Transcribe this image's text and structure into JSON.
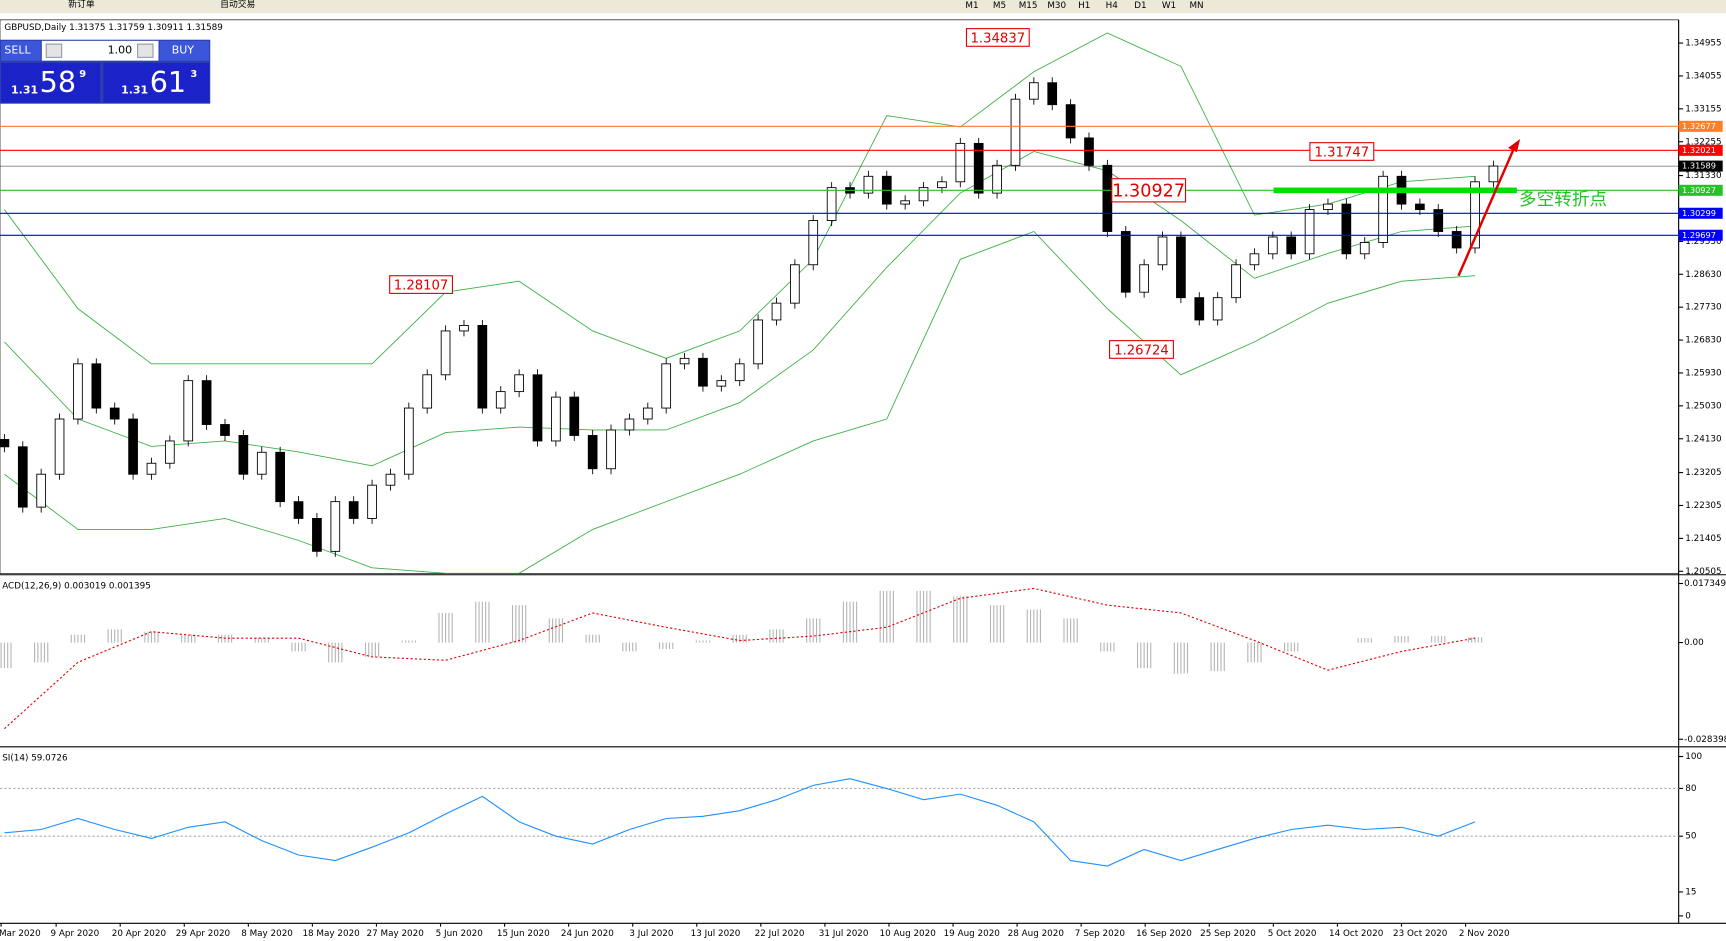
{
  "toolbar": {
    "new_order": "新订单",
    "auto_trading": "自动交易",
    "timeframes": [
      "M1",
      "M5",
      "M15",
      "M30",
      "H1",
      "H4",
      "D1",
      "W1",
      "MN"
    ]
  },
  "symbol_header": "GBPUSD,Daily 1.31375 1.31759 1.30911 1.31589",
  "trade_panel": {
    "sell": "SELL",
    "lots": "1.00",
    "buy": "BUY",
    "bid": {
      "prefix": "1.31",
      "pips": "58",
      "fraction": "9"
    },
    "ask": {
      "prefix": "1.31",
      "pips": "61",
      "fraction": "3"
    }
  },
  "main_pane": {
    "ylim": [
      1.2044,
      1.3559
    ],
    "yticks": [
      {
        "value": 1.34955,
        "label": "1.34955"
      },
      {
        "value": 1.34055,
        "label": "1.34055"
      },
      {
        "value": 1.33155,
        "label": "1.33155"
      },
      {
        "value": 1.32255,
        "label": "1.32255"
      },
      {
        "value": 1.3133,
        "label": "1.31330"
      },
      {
        "value": 1.2953,
        "label": "1.29530"
      },
      {
        "value": 1.2863,
        "label": "1.28630"
      },
      {
        "value": 1.2773,
        "label": "1.27730"
      },
      {
        "value": 1.2683,
        "label": "1.26830"
      },
      {
        "value": 1.2593,
        "label": "1.25930"
      },
      {
        "value": 1.2503,
        "label": "1.25030"
      },
      {
        "value": 1.2413,
        "label": "1.24130"
      },
      {
        "value": 1.23205,
        "label": "1.23205"
      },
      {
        "value": 1.22305,
        "label": "1.22305"
      },
      {
        "value": 1.21405,
        "label": "1.21405"
      },
      {
        "value": 1.20505,
        "label": "1.20505"
      }
    ],
    "levels": [
      {
        "value": 1.32677,
        "label": "1.32677",
        "color": "#ff7f27"
      },
      {
        "value": 1.32021,
        "label": "1.32021",
        "color": "#ff0000"
      },
      {
        "value": 1.31589,
        "label": "1.31589",
        "color": "#000000"
      },
      {
        "value": 1.30927,
        "label": "1.30927",
        "color": "#22c322"
      },
      {
        "value": 1.30299,
        "label": "1.30299",
        "color": "#0000ff"
      },
      {
        "value": 1.29697,
        "label": "1.29697",
        "color": "#0000ff"
      }
    ],
    "closes": [
      1.2391,
      1.2226,
      1.2316,
      1.2467,
      1.2618,
      1.2497,
      1.2467,
      1.2316,
      1.2346,
      1.2407,
      1.2572,
      1.2452,
      1.2422,
      1.2316,
      1.2376,
      1.2241,
      1.2195,
      1.2105,
      1.2241,
      1.2195,
      1.2286,
      1.2316,
      1.2497,
      1.2588,
      1.2708,
      1.2723,
      1.2497,
      1.2542,
      1.2588,
      1.2407,
      1.2527,
      1.2422,
      1.2331,
      1.2437,
      1.2467,
      1.2497,
      1.2618,
      1.2633,
      1.2557,
      1.2572,
      1.2618,
      1.2738,
      1.2784,
      1.2889,
      1.301,
      1.31,
      1.3085,
      1.3131,
      1.3055,
      1.3064,
      1.31,
      1.3116,
      1.3221,
      1.3085,
      1.3161,
      1.3342,
      1.3387,
      1.3327,
      1.3236,
      1.3161,
      1.298,
      1.2814,
      1.2889,
      1.2965,
      1.2799,
      1.2738,
      1.2799,
      1.2889,
      1.2919,
      1.2965,
      1.2919,
      1.304,
      1.3055,
      1.2919,
      1.295,
      1.3131,
      1.3055,
      1.304,
      1.298,
      1.2935,
      1.3116,
      1.3159
    ],
    "upper_band": [
      1.304,
      1.2769,
      1.2618,
      1.2618,
      1.2618,
      1.2618,
      1.2814,
      1.2844,
      1.2708,
      1.2633,
      1.2708,
      1.2904,
      1.3297,
      1.3266,
      1.3417,
      1.3523,
      1.3432,
      1.3025,
      1.3055,
      1.3116,
      1.3131
    ],
    "middle_band": [
      1.2678,
      1.2467,
      1.2392,
      1.2407,
      1.2377,
      1.2339,
      1.243,
      1.2445,
      1.2437,
      1.2437,
      1.2512,
      1.2656,
      1.2882,
      1.3085,
      1.3199,
      1.3146,
      1.301,
      1.2852,
      1.292,
      1.298,
      1.2995
    ],
    "lower_band": [
      1.2316,
      1.2165,
      1.2165,
      1.2195,
      1.2135,
      1.206,
      1.2045,
      1.2045,
      1.2165,
      1.2241,
      1.2316,
      1.2407,
      1.2467,
      1.2904,
      1.298,
      1.2769,
      1.2588,
      1.2678,
      1.2784,
      1.2844,
      1.2859
    ],
    "annotations": [
      {
        "value": 1.34837,
        "label": "1.34837"
      },
      {
        "value": 1.28107,
        "label": "1.28107"
      },
      {
        "value": 1.30927,
        "label": "1.30927"
      },
      {
        "value": 1.31747,
        "label": "1.31747"
      },
      {
        "value": 1.26724,
        "label": "1.26724"
      }
    ],
    "note": "多空转折点"
  },
  "macd_pane": {
    "label": "ACD(12,26,9) 0.003019 0.001395",
    "ylim": [
      -0.0303,
      0.0196
    ],
    "yticks": [
      0.017349,
      {
        "value": 0,
        "label": "0.00"
      },
      -0.028398
    ],
    "histogram": [
      -0.0075,
      -0.0058,
      0.0023,
      0.0039,
      0.0032,
      0.0023,
      0.0023,
      0.0013,
      -0.0026,
      -0.0058,
      -0.0042,
      0.0006,
      0.0087,
      0.012,
      0.011,
      0.0071,
      0.0023,
      -0.0026,
      -0.0019,
      0.0006,
      0.0023,
      0.0039,
      0.0071,
      0.012,
      0.0152,
      0.0152,
      0.0136,
      0.011,
      0.0097,
      0.0071,
      -0.0026,
      -0.0075,
      -0.0091,
      -0.0084,
      -0.0058,
      -0.0026,
      0,
      0.0013,
      0.0019,
      0.0019,
      0.0016
    ],
    "signal": [
      -0.0253,
      -0.0058,
      0.0032,
      0.0013,
      0.0013,
      -0.0042,
      -0.0052,
      0.0006,
      0.0087,
      0.0045,
      0.0006,
      0.0019,
      0.0045,
      0.013,
      0.0159,
      0.011,
      0.0087,
      0.0006,
      -0.0081,
      -0.0026,
      0.0013
    ]
  },
  "rsi_pane": {
    "label": "SI(14) 59.0726",
    "ylim": [
      -4,
      104
    ],
    "yticks": [
      100,
      80,
      50,
      15,
      0
    ],
    "dashed_levels": [
      80,
      50
    ],
    "values": [
      52.1,
      54.2,
      61.1,
      54.2,
      48.6,
      55.6,
      59,
      47.2,
      38.2,
      34.7,
      43.1,
      52.1,
      63.9,
      75,
      59,
      50,
      45.1,
      54.2,
      61.1,
      62.5,
      66,
      72.9,
      81.9,
      86.1,
      79.9,
      72.9,
      76.4,
      69.4,
      59,
      34.7,
      31.3,
      41.7,
      34.7,
      41.7,
      48.6,
      54.2,
      56.9,
      54.2,
      55.6,
      50,
      59
    ]
  },
  "dates": [
    "Mar 2020",
    "9 Apr 2020",
    "20 Apr 2020",
    "29 Apr 2020",
    "8 May 2020",
    "18 May 2020",
    "27 May 2020",
    "5 Jun 2020",
    "15 Jun 2020",
    "24 Jun 2020",
    "3 Jul 2020",
    "13 Jul 2020",
    "22 Jul 2020",
    "31 Jul 2020",
    "10 Aug 2020",
    "19 Aug 2020",
    "28 Aug 2020",
    "7 Sep 2020",
    "16 Sep 2020",
    "25 Sep 2020",
    "5 Oct 2020",
    "14 Oct 2020",
    "23 Oct 2020",
    "2 Nov 2020"
  ]
}
